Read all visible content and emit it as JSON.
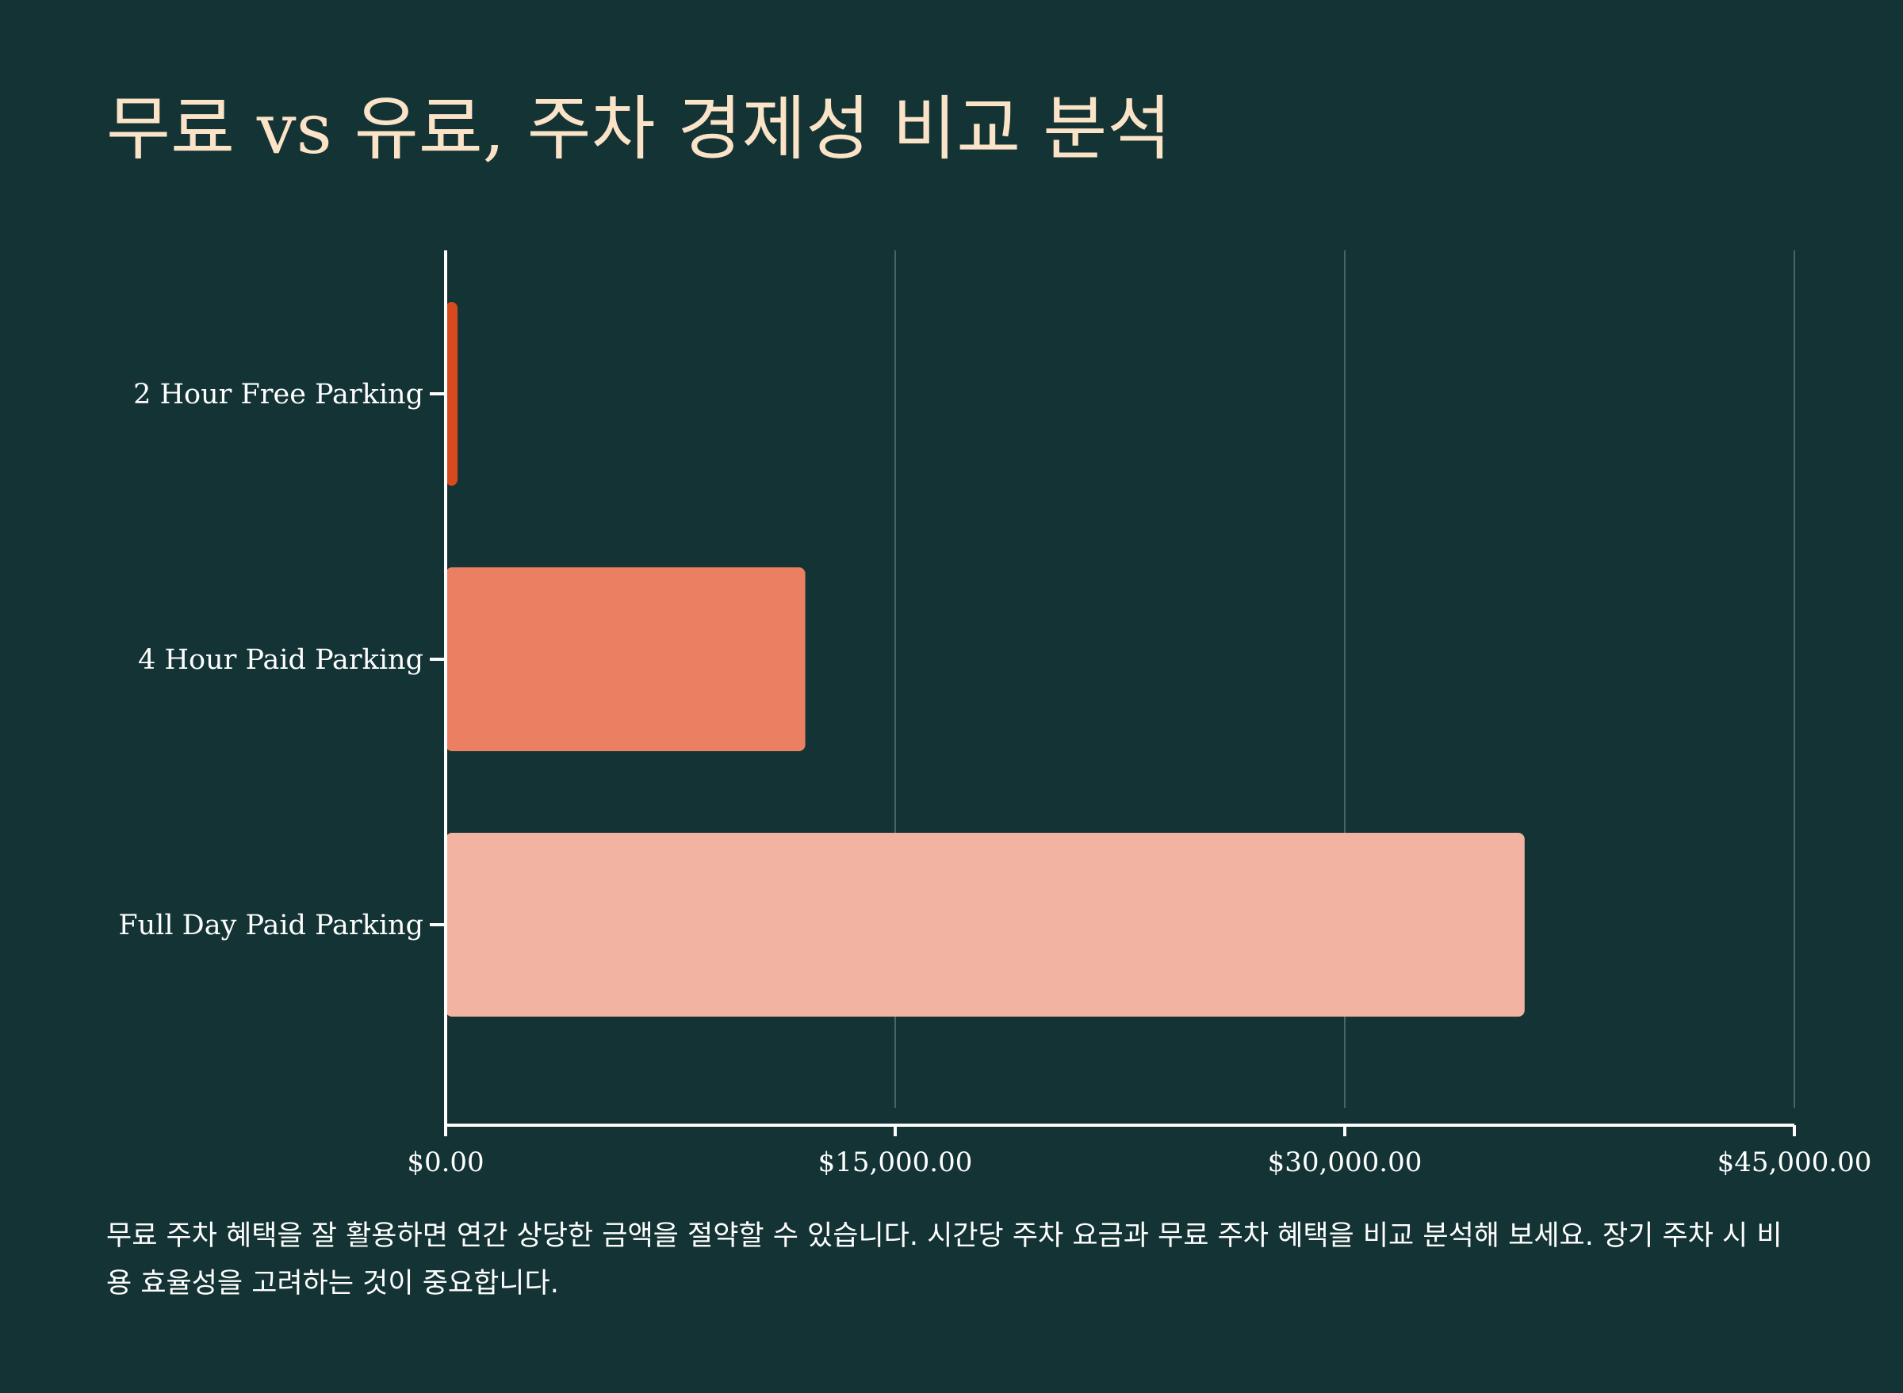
{
  "title": "무료 vs 유료, 주차 경제성 비교 분석",
  "caption": "무료 주차 혜택을 잘 활용하면 연간 상당한 금액을 절약할 수 있습니다. 시간당 주차 요금과 무료 주차 혜택을 비교 분석해 보세요. 장기 주차 시 비용 효율성을 고려하는 것이 중요합니다.",
  "chart_data": {
    "type": "bar",
    "orientation": "horizontal",
    "categories": [
      "2 Hour Free Parking",
      "4 Hour Paid Parking",
      "Full Day Paid Parking"
    ],
    "values": [
      400,
      12000,
      36000
    ],
    "colors": [
      "#d74a1e",
      "#ea8061",
      "#f2b3a3"
    ],
    "xlim": [
      0,
      45000
    ],
    "x_ticks": [
      0,
      15000,
      30000,
      45000
    ],
    "x_tick_labels": [
      "$0.00",
      "$15,000.00",
      "$30,000.00",
      "$45,000.00"
    ],
    "xlabel": "",
    "ylabel": "",
    "grid": "vertical",
    "legend": "none"
  },
  "colors": {
    "background": "#143334",
    "title": "#fbe3c8",
    "axis": "#ffffff",
    "grid": "#4a6464"
  }
}
